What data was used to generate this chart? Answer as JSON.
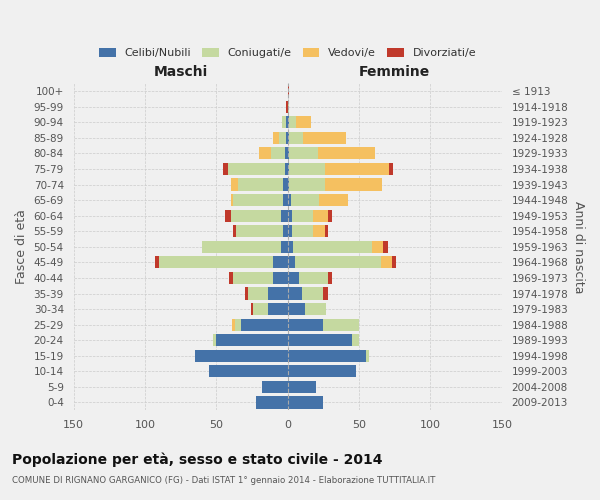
{
  "age_groups": [
    "0-4",
    "5-9",
    "10-14",
    "15-19",
    "20-24",
    "25-29",
    "30-34",
    "35-39",
    "40-44",
    "45-49",
    "50-54",
    "55-59",
    "60-64",
    "65-69",
    "70-74",
    "75-79",
    "80-84",
    "85-89",
    "90-94",
    "95-99",
    "100+"
  ],
  "birth_years": [
    "2009-2013",
    "2004-2008",
    "1999-2003",
    "1994-1998",
    "1989-1993",
    "1984-1988",
    "1979-1983",
    "1974-1978",
    "1969-1973",
    "1964-1968",
    "1959-1963",
    "1954-1958",
    "1949-1953",
    "1944-1948",
    "1939-1943",
    "1934-1938",
    "1929-1933",
    "1924-1928",
    "1919-1923",
    "1914-1918",
    "≤ 1913"
  ],
  "maschi": {
    "celibi": [
      22,
      18,
      55,
      65,
      50,
      33,
      14,
      14,
      10,
      10,
      5,
      3,
      5,
      3,
      3,
      2,
      2,
      1,
      1,
      0,
      0
    ],
    "coniugati": [
      0,
      0,
      0,
      0,
      2,
      4,
      10,
      14,
      28,
      80,
      55,
      33,
      35,
      35,
      32,
      40,
      10,
      5,
      3,
      0,
      0
    ],
    "vedovi": [
      0,
      0,
      0,
      0,
      0,
      2,
      0,
      0,
      0,
      0,
      0,
      0,
      0,
      2,
      5,
      0,
      8,
      4,
      0,
      0,
      0
    ],
    "divorziati": [
      0,
      0,
      0,
      0,
      0,
      0,
      2,
      2,
      3,
      3,
      0,
      2,
      4,
      0,
      0,
      3,
      0,
      0,
      0,
      1,
      0
    ]
  },
  "femmine": {
    "nubili": [
      25,
      20,
      48,
      55,
      45,
      25,
      12,
      10,
      8,
      5,
      4,
      3,
      3,
      2,
      1,
      1,
      1,
      1,
      1,
      0,
      0
    ],
    "coniugate": [
      0,
      0,
      0,
      2,
      5,
      25,
      15,
      15,
      20,
      60,
      55,
      15,
      15,
      20,
      25,
      25,
      20,
      10,
      5,
      1,
      0
    ],
    "vedove": [
      0,
      0,
      0,
      0,
      0,
      0,
      0,
      0,
      0,
      8,
      8,
      8,
      10,
      20,
      40,
      45,
      40,
      30,
      10,
      0,
      0
    ],
    "divorziate": [
      0,
      0,
      0,
      0,
      0,
      0,
      0,
      3,
      3,
      3,
      3,
      2,
      3,
      0,
      0,
      3,
      0,
      0,
      0,
      0,
      1
    ]
  },
  "color_celibi": "#4472a8",
  "color_coniugati": "#c5d9a0",
  "color_vedovi": "#f5c060",
  "color_divorziati": "#c0392b",
  "title": "Popolazione per età, sesso e stato civile - 2014",
  "subtitle": "COMUNE DI RIGNANO GARGANICO (FG) - Dati ISTAT 1° gennaio 2014 - Elaborazione TUTTITALIA.IT",
  "xlabel_maschi": "Maschi",
  "xlabel_femmine": "Femmine",
  "ylabel_left": "Fasce di età",
  "ylabel_right": "Anni di nascita",
  "xlim": 150,
  "bg_color": "#f0f0f0",
  "grid_color": "#cccccc"
}
